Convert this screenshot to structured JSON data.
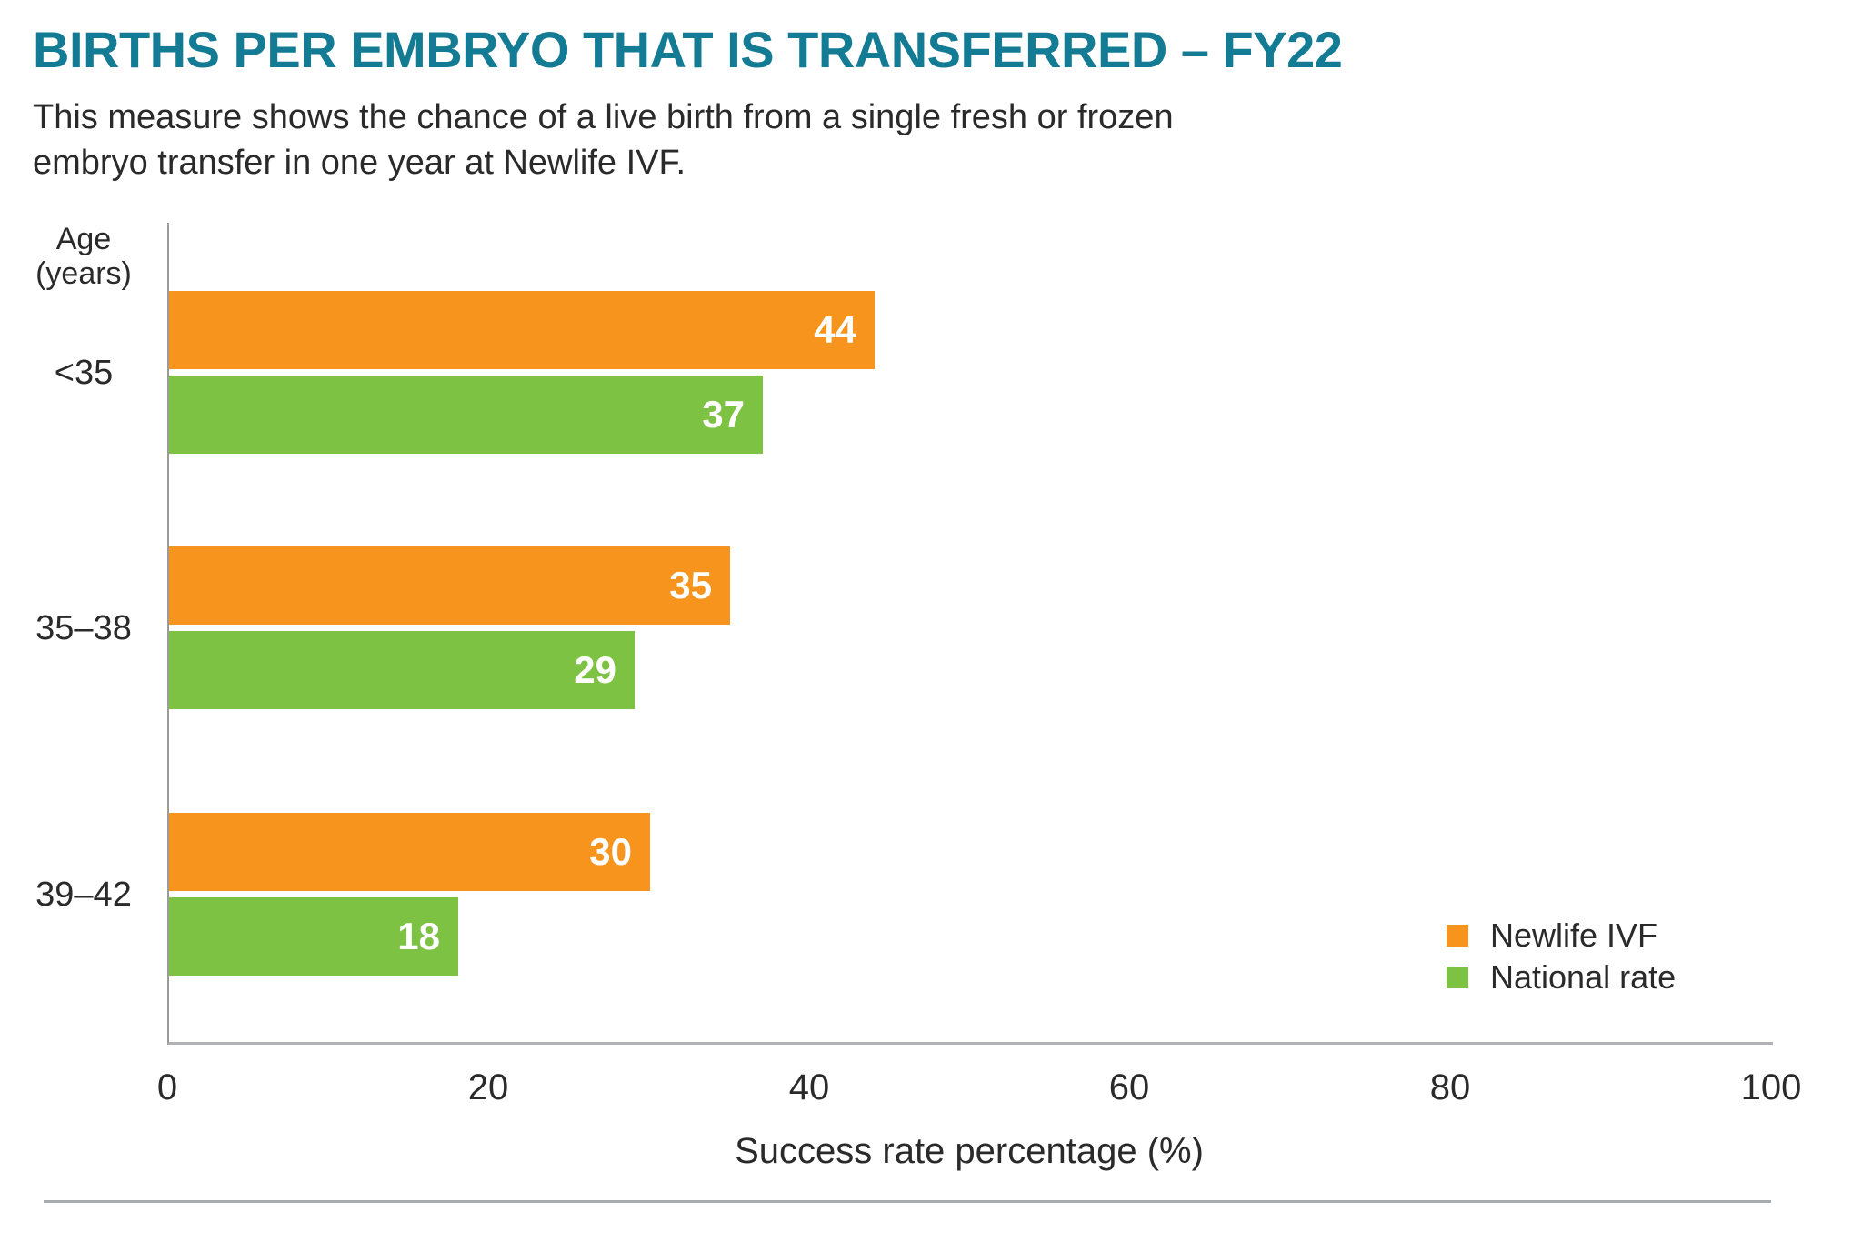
{
  "header": {
    "title": "BIRTHS PER EMBRYO THAT IS TRANSFERRED – FY22",
    "subtitle_lines": [
      "This measure shows the chance of a live birth from a single fresh or frozen",
      "embryo transfer in one year at Newlife IVF."
    ]
  },
  "chart_data": {
    "type": "bar",
    "orientation": "horizontal",
    "title": "BIRTHS PER EMBRYO THAT IS TRANSFERRED – FY22",
    "categories": [
      "<35",
      "35–38",
      "39–42"
    ],
    "series": [
      {
        "name": "Newlife IVF",
        "color": "#F7941E",
        "values": [
          44,
          35,
          30
        ]
      },
      {
        "name": "National rate",
        "color": "#7DC243",
        "values": [
          37,
          29,
          18
        ]
      }
    ],
    "xlabel": "Success rate percentage (%)",
    "ylabel": "Age (years)",
    "ylabel_lines": [
      "Age",
      "(years)"
    ],
    "xlim": [
      0,
      100
    ],
    "xticks": [
      0,
      20,
      40,
      60,
      80,
      100
    ],
    "grid": false,
    "value_labels": true,
    "legend_position": "bottom-right"
  },
  "colors": {
    "title_teal": "#147B94",
    "newlife_orange": "#F7941E",
    "national_green": "#7DC243",
    "body_text": "#2a2a2a"
  }
}
